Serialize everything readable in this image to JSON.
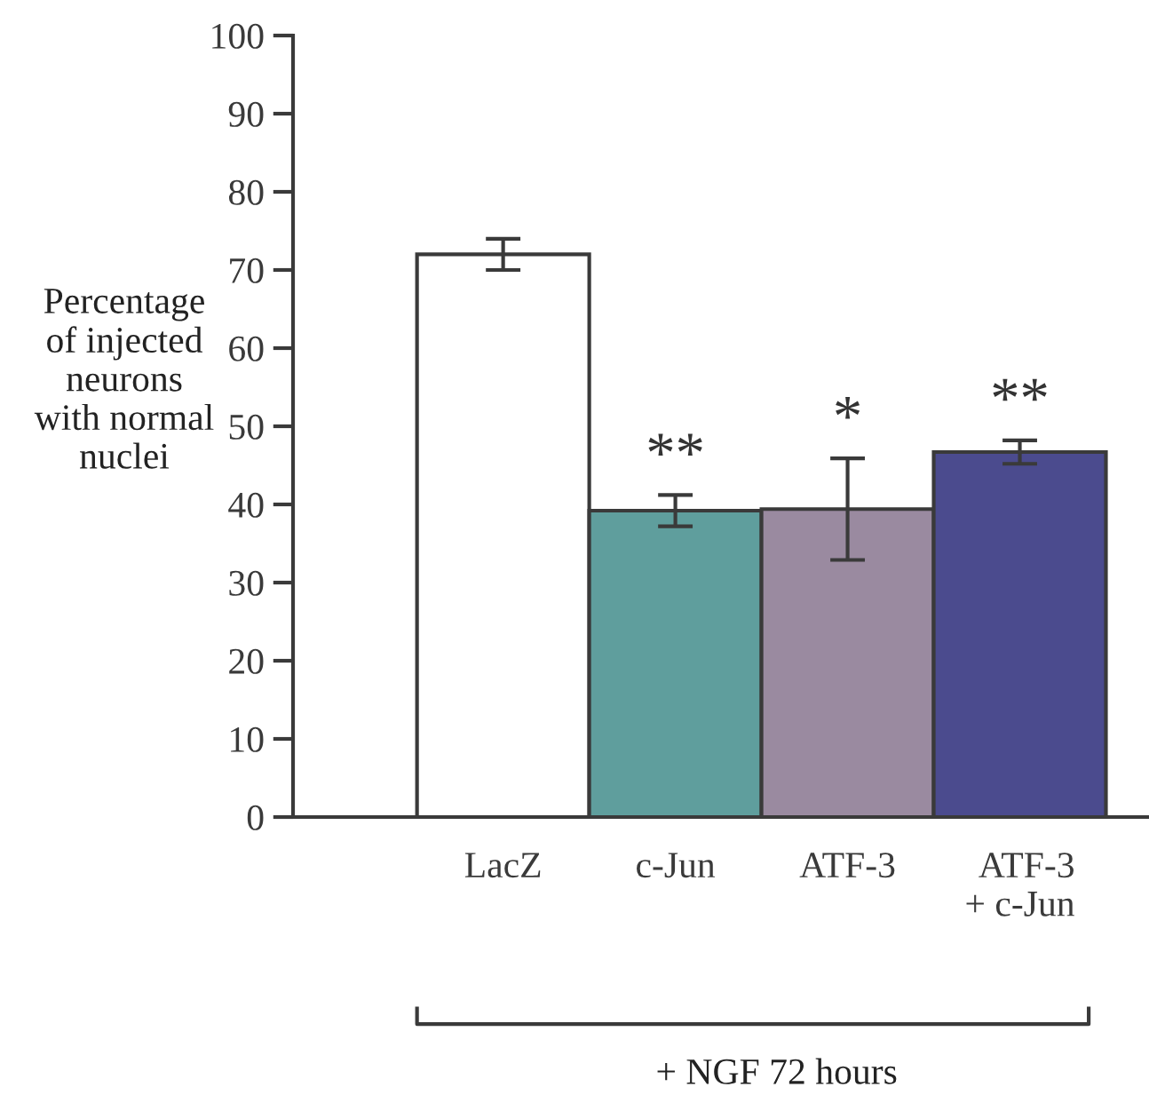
{
  "chart_data": {
    "type": "bar",
    "ylabel": "Percentage\nof injected\nneurons\nwith normal\nnuclei",
    "categories": [
      "LacZ",
      "c-Jun",
      "ATF-3",
      "ATF-3\n+ c-Jun"
    ],
    "values": [
      72,
      39.2,
      39.4,
      46.7
    ],
    "colors": [
      "#ffffff",
      "#5f9e9d",
      "#9a8aa0",
      "#4b4b8e"
    ],
    "errors": [
      2,
      2,
      6.5,
      1.5
    ],
    "ylim": [
      0,
      100
    ],
    "yticks": [
      0,
      10,
      20,
      30,
      40,
      50,
      60,
      70,
      80,
      90,
      100
    ],
    "grid": false,
    "annotations": [
      "**",
      "*",
      "**",
      "+ NGF 72 hours"
    ]
  }
}
